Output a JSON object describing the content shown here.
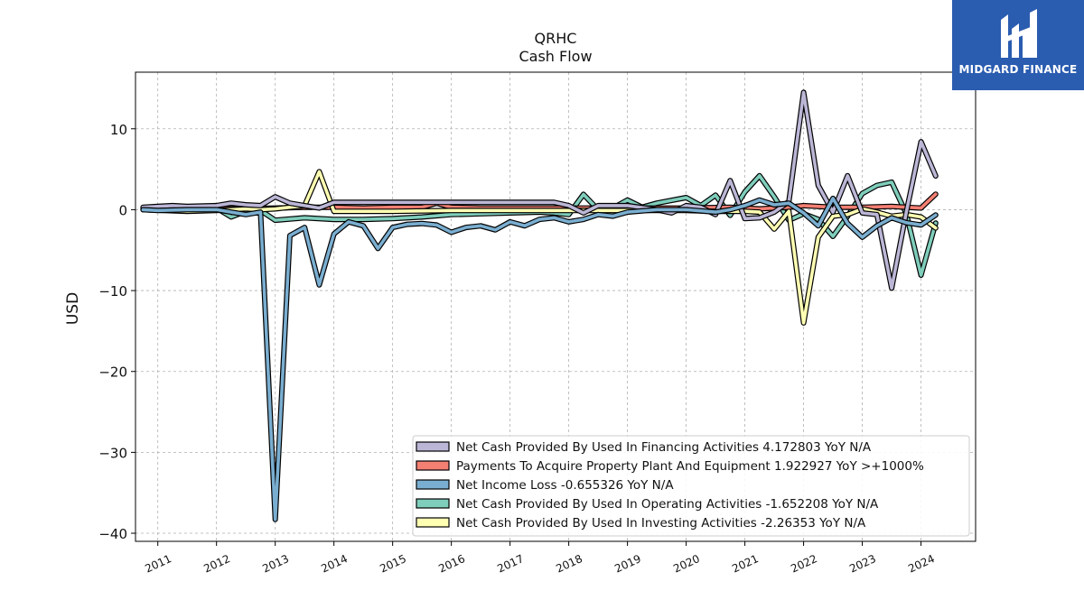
{
  "title": "QRHC",
  "subtitle": "Cash Flow",
  "brand": {
    "name": "MIDGARD FINANCE",
    "icon": "midgard-logo-icon",
    "color": "#2a5cb0"
  },
  "chart_data": {
    "type": "line",
    "ylabel": "USD",
    "xlabel": "",
    "xlim": [
      2010.62,
      2024.93
    ],
    "ylim": [
      -41,
      17
    ],
    "yticks": [
      10,
      0,
      -10,
      -20,
      -30,
      -40
    ],
    "ytick_labels": [
      "10",
      "0",
      "−10",
      "−20",
      "−30",
      "−40"
    ],
    "xticks": [
      2011,
      2012,
      2013,
      2014,
      2015,
      2016,
      2017,
      2018,
      2019,
      2020,
      2021,
      2022,
      2023,
      2024
    ],
    "grid": true,
    "legend_position": "lower-right",
    "series": [
      {
        "name": "Net Cash Provided By Used In Financing Activities  4.172803 YoY N/A",
        "color": "#bcb6d6",
        "points": [
          [
            2010.75,
            0.3
          ],
          [
            2011.0,
            0.4
          ],
          [
            2011.25,
            0.5
          ],
          [
            2011.5,
            0.4
          ],
          [
            2012.0,
            0.5
          ],
          [
            2012.25,
            0.8
          ],
          [
            2012.5,
            0.6
          ],
          [
            2012.75,
            0.5
          ],
          [
            2013.0,
            1.6
          ],
          [
            2013.25,
            0.8
          ],
          [
            2013.5,
            0.5
          ],
          [
            2013.75,
            0.2
          ],
          [
            2014.0,
            0.9
          ],
          [
            2014.5,
            0.9
          ],
          [
            2015.0,
            0.9
          ],
          [
            2015.5,
            0.9
          ],
          [
            2016.0,
            0.9
          ],
          [
            2016.5,
            0.9
          ],
          [
            2017.0,
            0.9
          ],
          [
            2017.5,
            0.9
          ],
          [
            2017.75,
            0.9
          ],
          [
            2018.0,
            0.5
          ],
          [
            2018.25,
            -0.4
          ],
          [
            2018.5,
            0.5
          ],
          [
            2019.0,
            0.5
          ],
          [
            2019.5,
            0.0
          ],
          [
            2019.75,
            -0.4
          ],
          [
            2020.0,
            0.5
          ],
          [
            2020.25,
            0.3
          ],
          [
            2020.5,
            -0.6
          ],
          [
            2020.75,
            3.6
          ],
          [
            2021.0,
            -1.1
          ],
          [
            2021.25,
            -1.0
          ],
          [
            2021.5,
            -0.3
          ],
          [
            2021.75,
            1.0
          ],
          [
            2022.0,
            14.5
          ],
          [
            2022.25,
            3.0
          ],
          [
            2022.5,
            -0.3
          ],
          [
            2022.75,
            4.2
          ],
          [
            2023.0,
            -0.4
          ],
          [
            2023.25,
            -0.6
          ],
          [
            2023.5,
            -9.7
          ],
          [
            2023.75,
            -0.3
          ],
          [
            2024.0,
            8.4
          ],
          [
            2024.25,
            4.17
          ]
        ]
      },
      {
        "name": "Payments To Acquire Property Plant And Equipment  1.922927 YoY >+1000%",
        "color": "#f47f73",
        "points": [
          [
            2010.75,
            0.1
          ],
          [
            2011.5,
            0.1
          ],
          [
            2012.5,
            0.15
          ],
          [
            2013.0,
            0.2
          ],
          [
            2013.5,
            0.3
          ],
          [
            2014.0,
            0.3
          ],
          [
            2014.5,
            0.2
          ],
          [
            2015.0,
            0.3
          ],
          [
            2015.5,
            0.3
          ],
          [
            2015.75,
            0.8
          ],
          [
            2016.0,
            0.3
          ],
          [
            2016.5,
            0.2
          ],
          [
            2017.0,
            0.2
          ],
          [
            2018.0,
            0.2
          ],
          [
            2019.0,
            0.2
          ],
          [
            2020.0,
            0.2
          ],
          [
            2020.75,
            0.3
          ],
          [
            2021.25,
            0.1
          ],
          [
            2021.75,
            0.3
          ],
          [
            2022.0,
            0.5
          ],
          [
            2022.5,
            0.3
          ],
          [
            2022.75,
            0.3
          ],
          [
            2023.0,
            0.3
          ],
          [
            2023.5,
            0.4
          ],
          [
            2023.75,
            0.3
          ],
          [
            2024.0,
            0.2
          ],
          [
            2024.25,
            1.92
          ]
        ]
      },
      {
        "name": "Net Income Loss  -0.655326 YoY N/A",
        "color": "#7aaed0",
        "points": [
          [
            2010.75,
            0.0
          ],
          [
            2011.0,
            -0.1
          ],
          [
            2011.5,
            0.0
          ],
          [
            2012.0,
            0.0
          ],
          [
            2012.5,
            -0.6
          ],
          [
            2012.75,
            -0.3
          ],
          [
            2013.0,
            -38.3
          ],
          [
            2013.25,
            -3.2
          ],
          [
            2013.5,
            -2.2
          ],
          [
            2013.75,
            -9.3
          ],
          [
            2014.0,
            -3.0
          ],
          [
            2014.25,
            -1.5
          ],
          [
            2014.5,
            -2.0
          ],
          [
            2014.75,
            -4.8
          ],
          [
            2015.0,
            -2.2
          ],
          [
            2015.25,
            -1.8
          ],
          [
            2015.5,
            -1.7
          ],
          [
            2015.75,
            -1.9
          ],
          [
            2016.0,
            -2.8
          ],
          [
            2016.25,
            -2.2
          ],
          [
            2016.5,
            -2.0
          ],
          [
            2016.75,
            -2.5
          ],
          [
            2017.0,
            -1.5
          ],
          [
            2017.25,
            -2.0
          ],
          [
            2017.5,
            -1.2
          ],
          [
            2017.75,
            -1.0
          ],
          [
            2018.0,
            -1.5
          ],
          [
            2018.25,
            -1.2
          ],
          [
            2018.5,
            -0.6
          ],
          [
            2018.75,
            -0.8
          ],
          [
            2019.0,
            -0.3
          ],
          [
            2019.5,
            0.0
          ],
          [
            2020.0,
            0.0
          ],
          [
            2020.5,
            -0.3
          ],
          [
            2020.75,
            0.0
          ],
          [
            2021.0,
            0.5
          ],
          [
            2021.25,
            1.2
          ],
          [
            2021.5,
            0.6
          ],
          [
            2021.75,
            0.8
          ],
          [
            2022.0,
            -0.4
          ],
          [
            2022.25,
            -2.0
          ],
          [
            2022.5,
            1.4
          ],
          [
            2022.75,
            -1.7
          ],
          [
            2023.0,
            -3.4
          ],
          [
            2023.25,
            -2.0
          ],
          [
            2023.5,
            -1.0
          ],
          [
            2023.75,
            -1.6
          ],
          [
            2024.0,
            -1.9
          ],
          [
            2024.25,
            -0.66
          ]
        ]
      },
      {
        "name": "Net Cash Provided By Used In Operating Activities  -1.652208 YoY N/A",
        "color": "#7fcdbb",
        "points": [
          [
            2010.75,
            0.2
          ],
          [
            2011.5,
            0.1
          ],
          [
            2012.0,
            0.2
          ],
          [
            2012.25,
            -0.9
          ],
          [
            2012.5,
            -0.2
          ],
          [
            2012.75,
            -0.1
          ],
          [
            2013.0,
            -1.3
          ],
          [
            2013.5,
            -1.0
          ],
          [
            2014.0,
            -1.2
          ],
          [
            2014.5,
            -1.2
          ],
          [
            2015.0,
            -1.1
          ],
          [
            2015.5,
            -0.9
          ],
          [
            2016.0,
            -0.6
          ],
          [
            2016.5,
            -0.5
          ],
          [
            2017.0,
            -0.4
          ],
          [
            2017.5,
            -0.3
          ],
          [
            2017.75,
            -0.4
          ],
          [
            2018.0,
            -0.6
          ],
          [
            2018.25,
            1.9
          ],
          [
            2018.5,
            0.0
          ],
          [
            2018.75,
            0.2
          ],
          [
            2019.0,
            1.2
          ],
          [
            2019.25,
            0.3
          ],
          [
            2019.5,
            0.8
          ],
          [
            2020.0,
            1.5
          ],
          [
            2020.25,
            0.5
          ],
          [
            2020.5,
            1.8
          ],
          [
            2020.75,
            -0.7
          ],
          [
            2021.0,
            2.2
          ],
          [
            2021.25,
            4.2
          ],
          [
            2021.5,
            1.6
          ],
          [
            2021.75,
            -1.3
          ],
          [
            2022.0,
            -0.5
          ],
          [
            2022.25,
            -1.2
          ],
          [
            2022.5,
            -3.3
          ],
          [
            2022.75,
            -0.8
          ],
          [
            2023.0,
            2.0
          ],
          [
            2023.25,
            3.0
          ],
          [
            2023.5,
            3.4
          ],
          [
            2023.75,
            -0.5
          ],
          [
            2024.0,
            -8.1
          ],
          [
            2024.25,
            -1.65
          ]
        ]
      },
      {
        "name": "Net Cash Provided By Used In Investing Activities  -2.26353 YoY N/A",
        "color": "#ffffb3",
        "points": [
          [
            2010.75,
            0.0
          ],
          [
            2011.5,
            -0.2
          ],
          [
            2012.0,
            -0.1
          ],
          [
            2012.5,
            0.1
          ],
          [
            2012.75,
            0.0
          ],
          [
            2013.0,
            0.1
          ],
          [
            2013.5,
            0.5
          ],
          [
            2013.75,
            4.7
          ],
          [
            2014.0,
            -0.2
          ],
          [
            2014.5,
            -0.2
          ],
          [
            2015.0,
            -0.2
          ],
          [
            2016.0,
            -0.1
          ],
          [
            2017.0,
            -0.1
          ],
          [
            2018.0,
            -0.1
          ],
          [
            2019.0,
            -0.1
          ],
          [
            2020.0,
            -0.1
          ],
          [
            2020.5,
            -0.2
          ],
          [
            2021.0,
            -0.2
          ],
          [
            2021.25,
            -0.3
          ],
          [
            2021.5,
            -2.4
          ],
          [
            2021.75,
            -0.2
          ],
          [
            2022.0,
            -14.0
          ],
          [
            2022.25,
            -3.4
          ],
          [
            2022.5,
            -0.8
          ],
          [
            2022.75,
            -0.6
          ],
          [
            2023.0,
            0.1
          ],
          [
            2023.25,
            -0.3
          ],
          [
            2023.5,
            -0.8
          ],
          [
            2023.75,
            -0.6
          ],
          [
            2024.0,
            -0.9
          ],
          [
            2024.25,
            -2.26
          ]
        ]
      }
    ],
    "draw_order": [
      3,
      1,
      4,
      0,
      2
    ]
  }
}
